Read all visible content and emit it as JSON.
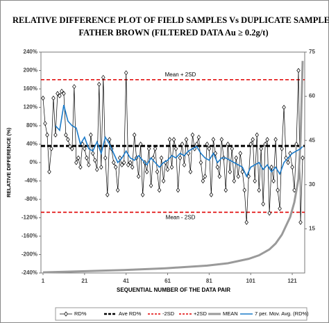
{
  "chart_data": {
    "type": "line",
    "title": [
      "RELATIVE  DIFFERENCE PLOT OF FIELD SAMPLES Vs DUPLICATE SAMPLES",
      "FATHER BROWN (FILTERED DATA  Au ≥ 0.2g/t)"
    ],
    "y_label": "RELATIVE DIFFERENCE (%)",
    "x_label": "SEQUENTIAL NUMBER OF THE DATA PAIR",
    "xlim": [
      0,
      127
    ],
    "xticks": [
      1,
      21,
      41,
      61,
      81,
      101,
      121
    ],
    "ylim": [
      -240,
      240
    ],
    "yticks": [
      {
        "value": -240,
        "label": "-240%"
      },
      {
        "value": -200,
        "label": "-200%"
      },
      {
        "value": -160,
        "label": "-160%"
      },
      {
        "value": -120,
        "label": "-120%"
      },
      {
        "value": -80,
        "label": "-80%"
      },
      {
        "value": -40,
        "label": "-40%"
      },
      {
        "value": 0,
        "label": "0%"
      },
      {
        "value": 40,
        "label": "40%"
      },
      {
        "value": 80,
        "label": "80%"
      },
      {
        "value": 120,
        "label": "120%"
      },
      {
        "value": 160,
        "label": "160%"
      },
      {
        "value": 200,
        "label": "200%"
      },
      {
        "value": 240,
        "label": "240%"
      }
    ],
    "y2lim": [
      0,
      75
    ],
    "y2ticks": [
      15,
      30,
      45,
      60,
      75
    ],
    "reference_lines": [
      {
        "name": "Ave RD%",
        "value": 36,
        "color": "#000000"
      },
      {
        "name": "-2SD",
        "value": -108,
        "color": "#e00000"
      },
      {
        "name": "+2SD",
        "value": 180,
        "color": "#e00000"
      }
    ],
    "annotations": [
      "Mean + 2SD",
      "Mean - 2SD"
    ],
    "series": [
      {
        "name": "RD%",
        "color": "#000000",
        "x": [
          1,
          2,
          3,
          4,
          5,
          6,
          7,
          8,
          9,
          10,
          11,
          12,
          13,
          14,
          15,
          16,
          17,
          18,
          19,
          20,
          21,
          22,
          23,
          24,
          25,
          26,
          27,
          28,
          29,
          30,
          31,
          32,
          33,
          34,
          35,
          36,
          37,
          38,
          39,
          40,
          41,
          42,
          43,
          44,
          45,
          46,
          47,
          48,
          49,
          50,
          51,
          52,
          53,
          54,
          55,
          56,
          57,
          58,
          59,
          60,
          61,
          62,
          63,
          64,
          65,
          66,
          67,
          68,
          69,
          70,
          71,
          72,
          73,
          74,
          75,
          76,
          77,
          78,
          79,
          80,
          81,
          82,
          83,
          84,
          85,
          86,
          87,
          88,
          89,
          90,
          91,
          92,
          93,
          94,
          95,
          96,
          97,
          98,
          99,
          100,
          101,
          102,
          103,
          104,
          105,
          106,
          107,
          108,
          109,
          110,
          111,
          112,
          113,
          114,
          115,
          116,
          117,
          118,
          119,
          120,
          121,
          122,
          123,
          124,
          125,
          126
        ],
        "values": [
          140,
          85,
          60,
          -20,
          30,
          140,
          60,
          150,
          145,
          155,
          150,
          60,
          50,
          35,
          30,
          165,
          0,
          10,
          -10,
          40,
          30,
          10,
          -5,
          60,
          20,
          5,
          -15,
          170,
          -10,
          185,
          10,
          -70,
          50,
          30,
          0,
          -10,
          -60,
          10,
          -5,
          0,
          195,
          -5,
          0,
          -10,
          60,
          10,
          -30,
          40,
          -70,
          0,
          -20,
          30,
          -50,
          10,
          30,
          -20,
          -60,
          10,
          -40,
          0,
          -15,
          50,
          -10,
          50,
          30,
          -60,
          10,
          40,
          -5,
          50,
          20,
          -20,
          60,
          30,
          40,
          55,
          0,
          -40,
          -30,
          40,
          30,
          -70,
          50,
          20,
          -10,
          -30,
          50,
          10,
          -60,
          40,
          -20,
          30,
          -40,
          10,
          -30,
          20,
          -20,
          -60,
          -130,
          -30,
          40,
          50,
          -40,
          60,
          -60,
          30,
          -90,
          40,
          50,
          -110,
          -10,
          -40,
          50,
          -60,
          -100,
          30,
          120,
          10,
          0,
          20,
          -10,
          -60,
          40,
          200,
          -130,
          10
        ]
      },
      {
        "name": "Ave RD%",
        "color": "#000000"
      },
      {
        "name": "-2SD",
        "color": "#e00000"
      },
      {
        "name": "+2SD",
        "color": "#e00000"
      },
      {
        "name": "MEAN",
        "color": "#9a9a9a",
        "axis": "y2",
        "x": [
          1,
          20,
          40,
          60,
          80,
          90,
          100,
          105,
          110,
          113,
          116,
          118,
          120,
          122,
          124,
          125,
          126
        ],
        "values": [
          0.2,
          0.6,
          1,
          1.6,
          2.5,
          3.3,
          4.8,
          6,
          8,
          10,
          13,
          16,
          19,
          24,
          32,
          45,
          72
        ]
      },
      {
        "name": "7 per. Mov. Avg. (RD%)",
        "color": "#1a7ac9",
        "x": [
          7,
          9,
          11,
          13,
          15,
          17,
          19,
          21,
          23,
          25,
          27,
          29,
          31,
          33,
          35,
          37,
          39,
          41,
          43,
          45,
          47,
          49,
          51,
          53,
          55,
          57,
          59,
          61,
          63,
          65,
          67,
          69,
          71,
          73,
          75,
          77,
          79,
          81,
          83,
          85,
          87,
          89,
          91,
          93,
          95,
          97,
          99,
          101,
          103,
          105,
          107,
          109,
          111,
          113,
          115,
          117,
          119,
          121,
          123,
          125,
          126
        ],
        "values": [
          80,
          70,
          125,
          90,
          80,
          75,
          40,
          55,
          30,
          25,
          45,
          20,
          55,
          40,
          20,
          0,
          10,
          25,
          10,
          5,
          15,
          5,
          -5,
          10,
          0,
          -10,
          0,
          5,
          15,
          10,
          20,
          15,
          25,
          30,
          35,
          20,
          10,
          5,
          20,
          0,
          10,
          10,
          5,
          0,
          -5,
          -10,
          -30,
          -10,
          -5,
          0,
          -15,
          -5,
          -20,
          -10,
          -25,
          0,
          10,
          20,
          25,
          30,
          35
        ]
      }
    ]
  }
}
